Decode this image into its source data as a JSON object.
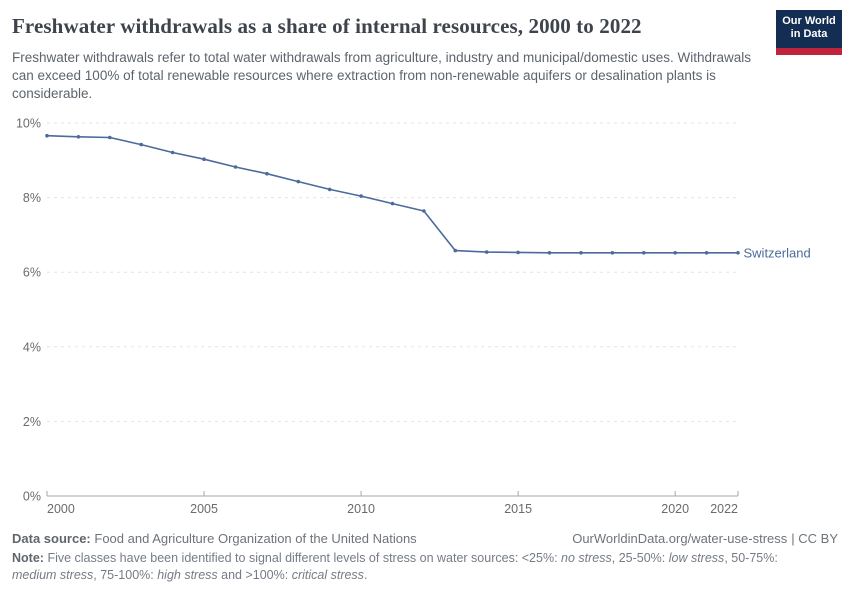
{
  "header": {
    "title": "Freshwater withdrawals as a share of internal resources, 2000 to 2022",
    "subtitle": "Freshwater withdrawals refer to total water withdrawals from agriculture, industry and municipal/domestic uses. Withdrawals can exceed 100% of total renewable resources where extraction from non-renewable aquifers or desalination plants is considerable.",
    "logo": {
      "line1": "Our World",
      "line2": "in Data",
      "bg_color": "#132e52",
      "stripe_color": "#c0233c"
    }
  },
  "chart_data": {
    "type": "line",
    "title": "Freshwater withdrawals as a share of internal resources, 2000 to 2022",
    "x": [
      2000,
      2001,
      2002,
      2003,
      2004,
      2005,
      2006,
      2007,
      2008,
      2009,
      2010,
      2011,
      2012,
      2013,
      2014,
      2015,
      2016,
      2017,
      2018,
      2019,
      2020,
      2021,
      2022
    ],
    "series": [
      {
        "name": "Switzerland",
        "color": "#4c6a9c",
        "values": [
          9.66,
          9.63,
          9.61,
          9.42,
          9.21,
          9.03,
          8.82,
          8.64,
          8.43,
          8.22,
          8.04,
          7.84,
          7.64,
          6.58,
          6.54,
          6.53,
          6.52,
          6.52,
          6.52,
          6.52,
          6.52,
          6.52,
          6.52
        ]
      }
    ],
    "xlim": [
      2000,
      2022
    ],
    "ylim": [
      0,
      10
    ],
    "x_ticks": [
      2000,
      2005,
      2010,
      2015,
      2020,
      2022
    ],
    "y_ticks": [
      0,
      2,
      4,
      6,
      8,
      10
    ],
    "y_tick_suffix": "%",
    "grid": "horizontal-dashed",
    "legend": "end-of-line-label",
    "xlabel": "",
    "ylabel": ""
  },
  "footer": {
    "source_label": "Data source:",
    "source_value": "Food and Agriculture Organization of the United Nations",
    "url_label": "OurWorldinData.org/water-use-stress",
    "license_label": "| CC BY",
    "note_label": "Note:",
    "note_segments": [
      {
        "text": "Five classes have been identified to signal different levels of stress on water sources: <25%: ",
        "italic": false
      },
      {
        "text": "no stress",
        "italic": true
      },
      {
        "text": ", 25-50%: ",
        "italic": false
      },
      {
        "text": "low stress",
        "italic": true
      },
      {
        "text": ", 50-75%: ",
        "italic": false
      },
      {
        "text": "medium stress",
        "italic": true
      },
      {
        "text": ", 75-100%: ",
        "italic": false
      },
      {
        "text": "high stress",
        "italic": true
      },
      {
        "text": " and >100%: ",
        "italic": false
      },
      {
        "text": "critical stress",
        "italic": true
      },
      {
        "text": ".",
        "italic": false
      }
    ]
  }
}
